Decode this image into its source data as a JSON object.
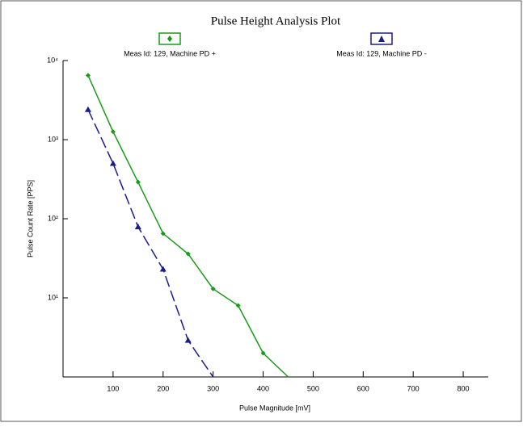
{
  "chart_data": {
    "type": "line",
    "title": "Pulse Height Analysis Plot",
    "x_label": "Pulse Magnitude [mV]",
    "y_label": "Pulse Count Rate [PPS]",
    "log_y": true,
    "xlim": [
      0,
      850
    ],
    "xticks": [
      100,
      200,
      300,
      400,
      500,
      600,
      700,
      800
    ],
    "ylim": [
      1,
      10000
    ],
    "yticks": [
      {
        "value": 10,
        "label": "10¹"
      },
      {
        "value": 100,
        "label": "10²"
      },
      {
        "value": 1000,
        "label": "10³"
      },
      {
        "value": 10000,
        "label": "10⁴"
      }
    ],
    "series": [
      {
        "name": "Meas Id: 129, Machine PD +",
        "color": "#1a9a1a",
        "marker": "diamond",
        "dashed": false,
        "x": [
          50,
          100,
          150,
          200,
          250,
          300,
          350,
          400,
          450
        ],
        "values": [
          6500,
          1260,
          290,
          65,
          36,
          13,
          8,
          2,
          1
        ]
      },
      {
        "name": "Meas Id: 129, Machine PD -",
        "color": "#1c1c8c",
        "marker": "triangle",
        "dashed": true,
        "x": [
          50,
          100,
          150,
          200,
          250,
          300
        ],
        "values": [
          2400,
          500,
          79,
          23,
          2.9,
          1
        ]
      }
    ]
  }
}
